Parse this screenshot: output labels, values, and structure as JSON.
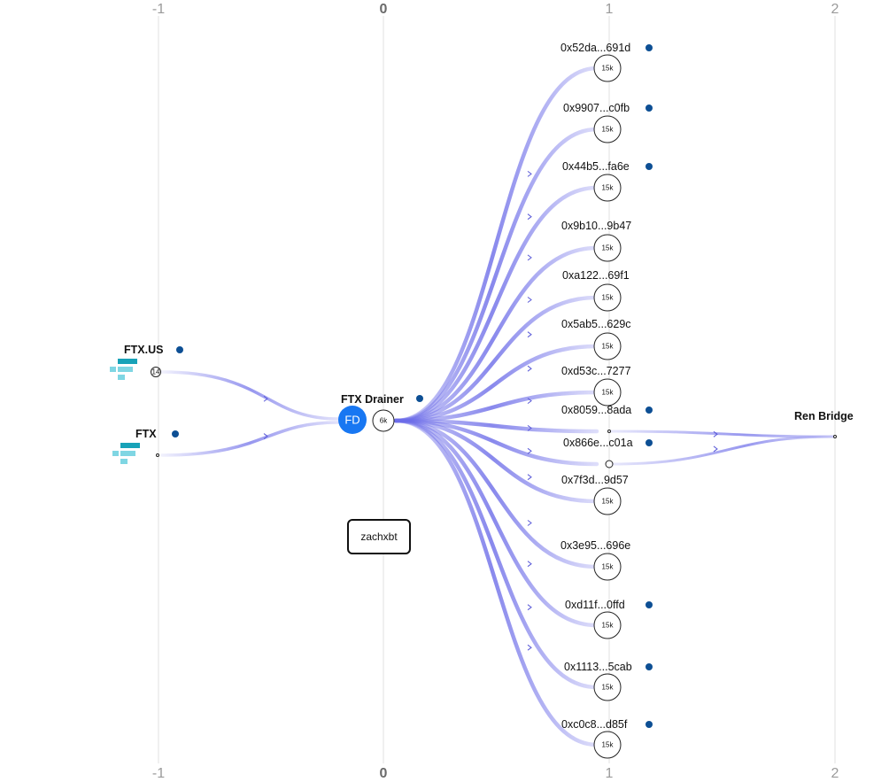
{
  "axis": {
    "ticks": [
      "-1",
      "0",
      "1",
      "2"
    ]
  },
  "annotation": {
    "label": "zachxbt"
  },
  "colors": {
    "flow": "#6b6be8",
    "dot": "#0d4f94",
    "fd_badge": "#1877f2",
    "exchange_icon_dark": "#17a2b8",
    "exchange_icon_light": "#7fd6e3"
  },
  "sources": [
    {
      "name": "FTX.US",
      "amount": "14",
      "icon": "exchange-logo-icon"
    },
    {
      "name": "FTX",
      "amount": "",
      "icon": "exchange-logo-icon"
    }
  ],
  "hub": {
    "name": "FTX Drainer",
    "initials": "FD",
    "amount": "6k"
  },
  "targets": [
    {
      "address": "0x52da...691d",
      "amount": "15k",
      "dot": true
    },
    {
      "address": "0x9907...c0fb",
      "amount": "15k",
      "dot": true
    },
    {
      "address": "0x44b5...fa6e",
      "amount": "15k",
      "dot": true
    },
    {
      "address": "0x9b10...9b47",
      "amount": "15k",
      "dot": false
    },
    {
      "address": "0xa122...69f1",
      "amount": "15k",
      "dot": false
    },
    {
      "address": "0x5ab5...629c",
      "amount": "15k",
      "dot": false
    },
    {
      "address": "0xd53c...7277",
      "amount": "15k",
      "dot": false
    },
    {
      "address": "0x8059...8ada",
      "amount": "",
      "dot": true
    },
    {
      "address": "0x866e...c01a",
      "amount": "",
      "dot": true
    },
    {
      "address": "0x7f3d...9d57",
      "amount": "15k",
      "dot": false
    },
    {
      "address": "0x3e95...696e",
      "amount": "15k",
      "dot": false
    },
    {
      "address": "0xd11f...0ffd",
      "amount": "15k",
      "dot": true
    },
    {
      "address": "0x1113...5cab",
      "amount": "15k",
      "dot": true
    },
    {
      "address": "0xc0c8...d85f",
      "amount": "15k",
      "dot": true
    }
  ],
  "destination": {
    "name": "Ren Bridge"
  }
}
